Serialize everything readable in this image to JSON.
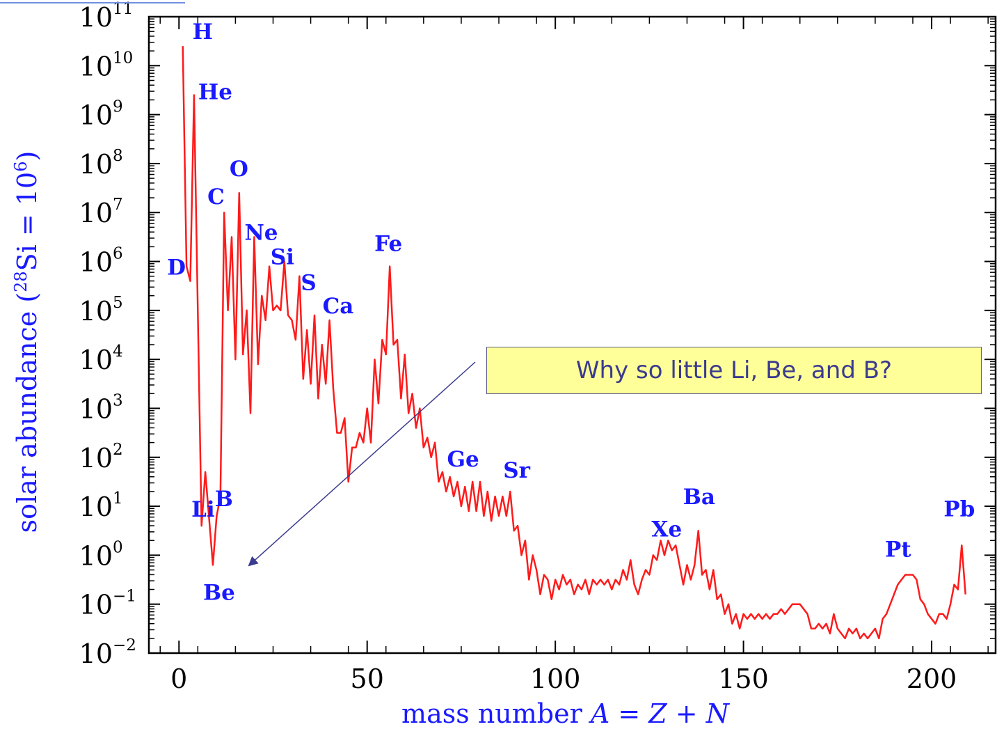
{
  "chart_data": {
    "type": "line",
    "title": "",
    "xlabel": "mass number  A = Z + N",
    "ylabel": "solar abundance (28Si = 106)",
    "ylabel_parts": {
      "pre": "solar abundance (",
      "sup1": "28",
      "mid": "Si = 10",
      "sup2": "6",
      "post": ")"
    },
    "xlabel_parts": {
      "pre": "mass number  ",
      "italic": "A = Z + N"
    },
    "xlim": [
      -8,
      217
    ],
    "ylim_log10": [
      -2,
      11
    ],
    "y_scale": "log",
    "x_ticks": [
      0,
      50,
      100,
      150,
      200
    ],
    "y_tick_exponents": [
      -2,
      -1,
      0,
      1,
      2,
      3,
      4,
      5,
      6,
      7,
      8,
      9,
      10,
      11
    ],
    "series": [
      {
        "color": "#ff1a1a",
        "points": [
          [
            1,
            10.4
          ],
          [
            2,
            5.9
          ],
          [
            3,
            5.6
          ],
          [
            4,
            9.4
          ],
          [
            6,
            0.6
          ],
          [
            7,
            1.7
          ],
          [
            9,
            -0.2
          ],
          [
            10,
            0.8
          ],
          [
            11,
            1.2
          ],
          [
            12,
            7.0
          ],
          [
            13,
            5.0
          ],
          [
            14,
            6.5
          ],
          [
            15,
            4.0
          ],
          [
            16,
            7.4
          ],
          [
            17,
            4.1
          ],
          [
            18,
            5.0
          ],
          [
            19,
            2.9
          ],
          [
            20,
            6.5
          ],
          [
            21,
            3.9
          ],
          [
            22,
            5.3
          ],
          [
            23,
            4.8
          ],
          [
            24,
            5.9
          ],
          [
            25,
            5.0
          ],
          [
            26,
            5.1
          ],
          [
            27,
            5.0
          ],
          [
            28,
            6.0
          ],
          [
            29,
            4.9
          ],
          [
            30,
            4.8
          ],
          [
            31,
            4.4
          ],
          [
            32,
            5.7
          ],
          [
            33,
            3.6
          ],
          [
            34,
            4.6
          ],
          [
            35,
            3.5
          ],
          [
            36,
            4.9
          ],
          [
            37,
            3.2
          ],
          [
            38,
            4.3
          ],
          [
            39,
            3.5
          ],
          [
            40,
            4.8
          ],
          [
            41,
            3.4
          ],
          [
            42,
            2.5
          ],
          [
            43,
            2.5
          ],
          [
            44,
            2.8
          ],
          [
            45,
            1.5
          ],
          [
            46,
            2.2
          ],
          [
            47,
            2.2
          ],
          [
            48,
            2.5
          ],
          [
            49,
            2.3
          ],
          [
            50,
            3.0
          ],
          [
            51,
            2.3
          ],
          [
            52,
            4.0
          ],
          [
            53,
            3.1
          ],
          [
            54,
            4.4
          ],
          [
            55,
            4.1
          ],
          [
            56,
            5.9
          ],
          [
            57,
            4.3
          ],
          [
            58,
            4.4
          ],
          [
            59,
            3.2
          ],
          [
            60,
            4.1
          ],
          [
            61,
            2.9
          ],
          [
            62,
            3.3
          ],
          [
            63,
            2.6
          ],
          [
            64,
            3.0
          ],
          [
            65,
            2.2
          ],
          [
            66,
            2.4
          ],
          [
            67,
            2.0
          ],
          [
            68,
            2.3
          ],
          [
            69,
            1.5
          ],
          [
            70,
            1.7
          ],
          [
            71,
            1.3
          ],
          [
            72,
            1.6
          ],
          [
            73,
            1.2
          ],
          [
            74,
            1.5
          ],
          [
            75,
            1.0
          ],
          [
            76,
            1.4
          ],
          [
            77,
            0.9
          ],
          [
            78,
            1.5
          ],
          [
            79,
            0.9
          ],
          [
            80,
            1.5
          ],
          [
            81,
            0.8
          ],
          [
            82,
            1.3
          ],
          [
            83,
            0.7
          ],
          [
            84,
            1.2
          ],
          [
            85,
            0.8
          ],
          [
            86,
            1.2
          ],
          [
            87,
            0.8
          ],
          [
            88,
            1.3
          ],
          [
            89,
            0.5
          ],
          [
            90,
            0.6
          ],
          [
            91,
            0.0
          ],
          [
            92,
            0.3
          ],
          [
            93,
            -0.5
          ],
          [
            94,
            0.0
          ],
          [
            95,
            -0.3
          ],
          [
            96,
            -0.8
          ],
          [
            97,
            -0.4
          ],
          [
            98,
            -0.5
          ],
          [
            99,
            -0.9
          ],
          [
            100,
            -0.5
          ],
          [
            101,
            -0.7
          ],
          [
            102,
            -0.4
          ],
          [
            103,
            -0.6
          ],
          [
            104,
            -0.5
          ],
          [
            105,
            -0.8
          ],
          [
            106,
            -0.6
          ],
          [
            107,
            -0.7
          ],
          [
            108,
            -0.5
          ],
          [
            109,
            -0.8
          ],
          [
            110,
            -0.5
          ],
          [
            111,
            -0.6
          ],
          [
            112,
            -0.5
          ],
          [
            113,
            -0.6
          ],
          [
            114,
            -0.5
          ],
          [
            115,
            -0.7
          ],
          [
            116,
            -0.5
          ],
          [
            117,
            -0.6
          ],
          [
            118,
            -0.3
          ],
          [
            119,
            -0.5
          ],
          [
            120,
            -0.1
          ],
          [
            121,
            -0.6
          ],
          [
            122,
            -0.8
          ],
          [
            123,
            -0.5
          ],
          [
            124,
            -0.3
          ],
          [
            125,
            -0.4
          ],
          [
            126,
            0.0
          ],
          [
            127,
            -0.1
          ],
          [
            128,
            0.3
          ],
          [
            129,
            0.0
          ],
          [
            130,
            0.3
          ],
          [
            131,
            0.1
          ],
          [
            132,
            0.2
          ],
          [
            133,
            -0.2
          ],
          [
            134,
            -0.6
          ],
          [
            135,
            -0.2
          ],
          [
            136,
            -0.5
          ],
          [
            137,
            -0.2
          ],
          [
            138,
            0.5
          ],
          [
            139,
            -0.4
          ],
          [
            140,
            -0.3
          ],
          [
            141,
            -0.7
          ],
          [
            142,
            -0.3
          ],
          [
            143,
            -0.9
          ],
          [
            144,
            -0.8
          ],
          [
            145,
            -1.2
          ],
          [
            146,
            -1.0
          ],
          [
            147,
            -1.4
          ],
          [
            148,
            -1.2
          ],
          [
            149,
            -1.5
          ],
          [
            150,
            -1.2
          ],
          [
            151,
            -1.3
          ],
          [
            152,
            -1.2
          ],
          [
            153,
            -1.3
          ],
          [
            154,
            -1.2
          ],
          [
            155,
            -1.3
          ],
          [
            156,
            -1.2
          ],
          [
            157,
            -1.3
          ],
          [
            158,
            -1.2
          ],
          [
            159,
            -1.2
          ],
          [
            160,
            -1.1
          ],
          [
            161,
            -1.2
          ],
          [
            162,
            -1.1
          ],
          [
            163,
            -1.0
          ],
          [
            164,
            -1.0
          ],
          [
            165,
            -1.0
          ],
          [
            166,
            -1.1
          ],
          [
            167,
            -1.2
          ],
          [
            168,
            -1.5
          ],
          [
            169,
            -1.5
          ],
          [
            170,
            -1.4
          ],
          [
            171,
            -1.5
          ],
          [
            172,
            -1.4
          ],
          [
            173,
            -1.6
          ],
          [
            174,
            -1.2
          ],
          [
            175,
            -1.5
          ],
          [
            176,
            -1.6
          ],
          [
            177,
            -1.7
          ],
          [
            178,
            -1.5
          ],
          [
            179,
            -1.6
          ],
          [
            180,
            -1.5
          ],
          [
            181,
            -1.7
          ],
          [
            182,
            -1.6
          ],
          [
            183,
            -1.7
          ],
          [
            184,
            -1.6
          ],
          [
            185,
            -1.5
          ],
          [
            186,
            -1.7
          ],
          [
            187,
            -1.3
          ],
          [
            188,
            -1.2
          ],
          [
            189,
            -1.0
          ],
          [
            190,
            -0.8
          ],
          [
            191,
            -0.6
          ],
          [
            192,
            -0.5
          ],
          [
            193,
            -0.4
          ],
          [
            194,
            -0.4
          ],
          [
            195,
            -0.4
          ],
          [
            196,
            -0.5
          ],
          [
            197,
            -0.9
          ],
          [
            198,
            -1.0
          ],
          [
            199,
            -1.2
          ],
          [
            200,
            -1.3
          ],
          [
            201,
            -1.4
          ],
          [
            202,
            -1.2
          ],
          [
            203,
            -1.2
          ],
          [
            204,
            -1.3
          ],
          [
            205,
            -1.0
          ],
          [
            206,
            -0.6
          ],
          [
            207,
            -0.7
          ],
          [
            208,
            0.2
          ],
          [
            209,
            -0.8
          ]
        ]
      }
    ],
    "annotations": [
      {
        "text": "H",
        "x": 1,
        "y_log10": 10.4
      },
      {
        "text": "He",
        "x": 4,
        "y_log10": 9.4
      },
      {
        "text": "D",
        "x": 2,
        "y_log10": 5.9
      },
      {
        "text": "O",
        "x": 16,
        "y_log10": 7.4
      },
      {
        "text": "C",
        "x": 12,
        "y_log10": 7.0
      },
      {
        "text": "Ne",
        "x": 20,
        "y_log10": 6.5
      },
      {
        "text": "Si",
        "x": 28,
        "y_log10": 6.0
      },
      {
        "text": "S",
        "x": 32,
        "y_log10": 5.7
      },
      {
        "text": "Ca",
        "x": 40,
        "y_log10": 4.8
      },
      {
        "text": "Fe",
        "x": 56,
        "y_log10": 5.9
      },
      {
        "text": "Ge",
        "x": 74,
        "y_log10": 1.5
      },
      {
        "text": "Sr",
        "x": 88,
        "y_log10": 1.3
      },
      {
        "text": "Li",
        "x": 7,
        "y_log10": 1.7
      },
      {
        "text": "B",
        "x": 11,
        "y_log10": 1.2
      },
      {
        "text": "Be",
        "x": 9,
        "y_log10": -0.2
      },
      {
        "text": "Xe",
        "x": 130,
        "y_log10": 0.3
      },
      {
        "text": "Ba",
        "x": 138,
        "y_log10": 0.5
      },
      {
        "text": "Pt",
        "x": 195,
        "y_log10": -0.4
      },
      {
        "text": "Pb",
        "x": 208,
        "y_log10": 0.2
      }
    ],
    "callout": {
      "text": "Why so little Li, Be, and B?"
    }
  },
  "colors": {
    "line": "#ff1a1a",
    "labels": "#1a1aff",
    "callout_bg": "#ffff99",
    "callout_text": "#3b3b8f",
    "arrow": "#3b3b8f"
  }
}
